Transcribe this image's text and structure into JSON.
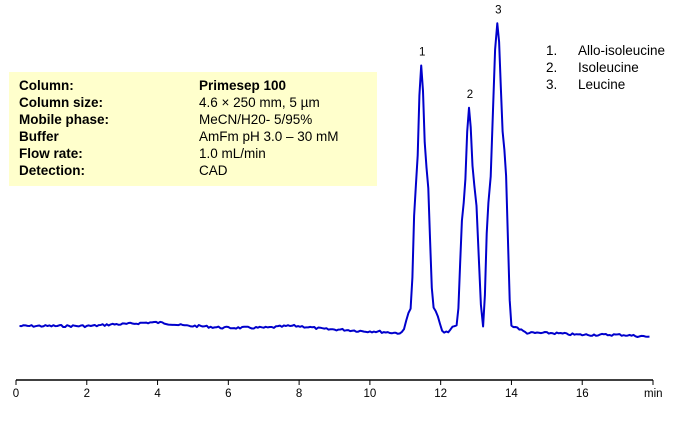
{
  "conditions": {
    "rows": [
      {
        "label": "Column:",
        "value": "Primesep 100",
        "value_bold": true
      },
      {
        "label": "Column size:",
        "value": "4.6 × 250 mm, 5 µm",
        "value_bold": false
      },
      {
        "label": "Mobile phase:",
        "value": "MeCN/H20- 5/95%",
        "value_bold": false
      },
      {
        "label": "Buffer",
        "value": "AmFm pH 3.0 – 30 mM",
        "value_bold": false
      },
      {
        "label": "Flow rate:",
        "value": "1.0 mL/min",
        "value_bold": false
      },
      {
        "label": "Detection:",
        "value": "CAD",
        "value_bold": false
      }
    ]
  },
  "legend": {
    "items": [
      {
        "num": "1.",
        "name": "Allo-isoleucine"
      },
      {
        "num": "2.",
        "name": "Isoleucine"
      },
      {
        "num": "3.",
        "name": "Leucine"
      }
    ]
  },
  "colors": {
    "trace": "#0000cc",
    "info_box_bg": "#ffffcc",
    "axis": "#000000"
  },
  "chart_data": {
    "type": "line",
    "title": "",
    "xlabel": "min",
    "ylabel": "",
    "xlim": [
      0,
      18
    ],
    "x_ticks": [
      0,
      2,
      4,
      6,
      8,
      10,
      12,
      14,
      16
    ],
    "x_unit_label": "min",
    "grid": false,
    "legend_position": "top-right",
    "peaks": [
      {
        "label": "1",
        "compound": "Allo-isoleucine",
        "retention_time": 11.45,
        "relative_height": 0.74
      },
      {
        "label": "2",
        "compound": "Isoleucine",
        "retention_time": 12.8,
        "relative_height": 0.62
      },
      {
        "label": "3",
        "compound": "Leucine",
        "retention_time": 13.6,
        "relative_height": 0.86
      }
    ],
    "series": [
      {
        "name": "CAD signal",
        "x": [
          0.1,
          1.0,
          2.0,
          2.9,
          3.9,
          5.0,
          6.0,
          7.0,
          7.8,
          9.0,
          10.0,
          10.9,
          11.15,
          11.3,
          11.45,
          11.6,
          11.8,
          12.1,
          12.45,
          12.65,
          12.8,
          12.95,
          13.2,
          13.35,
          13.6,
          13.8,
          14.0,
          14.5,
          15.0,
          16.0,
          17.0,
          17.9
        ],
        "y": [
          0.0,
          0.0,
          0.0,
          0.005,
          0.01,
          0.0,
          -0.005,
          -0.005,
          0.0,
          -0.01,
          -0.015,
          -0.02,
          0.05,
          0.4,
          0.74,
          0.45,
          0.05,
          -0.02,
          0.0,
          0.35,
          0.62,
          0.4,
          0.0,
          0.35,
          0.86,
          0.5,
          0.0,
          -0.02,
          -0.02,
          -0.025,
          -0.025,
          -0.03
        ]
      }
    ]
  }
}
